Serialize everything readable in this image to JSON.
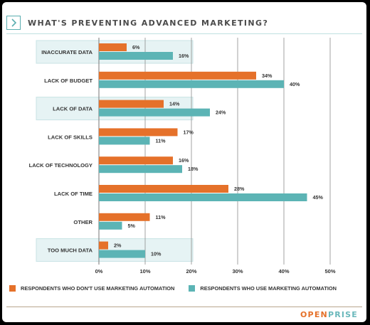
{
  "title": "WHAT'S PREVENTING ADVANCED MARKETING?",
  "colors": {
    "series1": "#e5712a",
    "series2": "#5cb4b5",
    "highlight": "#e6f3f4",
    "grid": "#8c8c8c"
  },
  "icons": {
    "header": "chevron-right-icon"
  },
  "brand": {
    "part1": "OPEN",
    "part2": "PRISE"
  },
  "chart_data": {
    "type": "bar",
    "orientation": "horizontal",
    "title": "WHAT'S PREVENTING ADVANCED MARKETING?",
    "categories": [
      "INACCURATE DATA",
      "LACK OF BUDGET",
      "LACK OF DATA",
      "LACK OF SKILLS",
      "LACK OF TECHNOLOGY",
      "LACK OF TIME",
      "OTHER",
      "TOO MUCH DATA"
    ],
    "highlighted_categories": [
      "INACCURATE DATA",
      "LACK OF DATA",
      "TOO MUCH DATA"
    ],
    "series": [
      {
        "name": "RESPONDENTS WHO DON'T USE MARKETING AUTOMATION",
        "values": [
          6,
          34,
          14,
          17,
          16,
          28,
          11,
          2
        ]
      },
      {
        "name": "RESPONDENTS WHO USE MARKETING AUTOMATION",
        "values": [
          16,
          40,
          24,
          11,
          18,
          45,
          5,
          10
        ]
      }
    ],
    "value_labels": [
      [
        "6%",
        "34%",
        "14%",
        "17%",
        "16%",
        "28%",
        "11%",
        "2%"
      ],
      [
        "16%",
        "40%",
        "24%",
        "11%",
        "18%",
        "45%",
        "5%",
        "10%"
      ]
    ],
    "xlim": [
      0,
      50
    ],
    "xticks": [
      "0%",
      "10%",
      "20%",
      "30%",
      "40%",
      "50%"
    ],
    "grid": true,
    "legend_position": "bottom"
  }
}
